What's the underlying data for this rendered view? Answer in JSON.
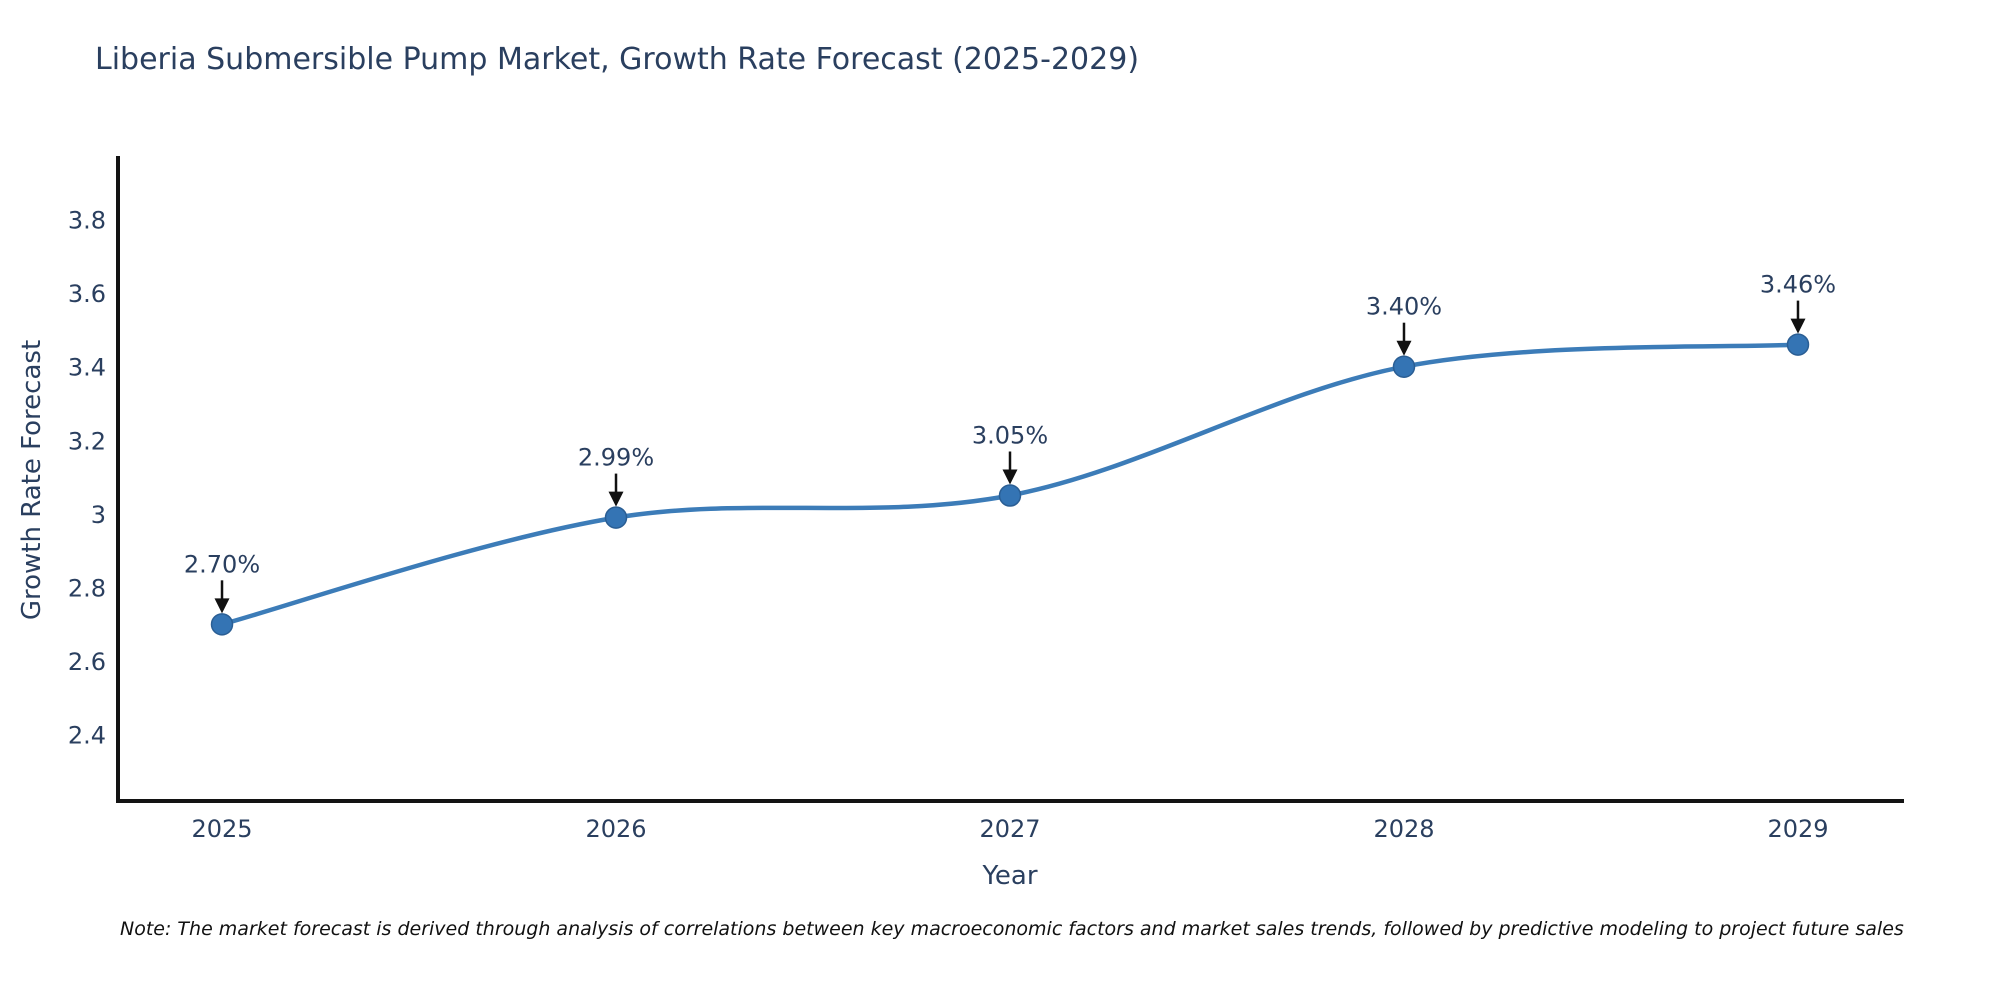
{
  "title": "Liberia Submersible Pump Market, Growth Rate Forecast (2025-2029)",
  "note": "Note: The market forecast is derived through analysis of correlations between key macroeconomic factors and market sales trends, followed by predictive modeling to project future sales",
  "colors": {
    "background": "#ffffff",
    "text": "#2a3f5f",
    "line": "#3c7cb8",
    "marker_fill": "#3474b4",
    "marker_edge": "#2a5e94",
    "axis_line": "#131313",
    "arrow": "#111111",
    "note_text": "#111111"
  },
  "chart_data": {
    "type": "line",
    "title": "Liberia Submersible Pump Market, Growth Rate Forecast (2025-2029)",
    "x": [
      2025,
      2026,
      2027,
      2028,
      2029
    ],
    "y": [
      2.7,
      2.99,
      3.05,
      3.4,
      3.46
    ],
    "point_labels": [
      "2.70%",
      "2.99%",
      "3.05%",
      "3.40%",
      "3.46%"
    ],
    "xlabel": "Year",
    "ylabel": "Growth Rate Forecast",
    "xtick_labels": [
      "2025",
      "2026",
      "2027",
      "2028",
      "2029"
    ],
    "xticks": [
      2025,
      2026,
      2027,
      2028,
      2029
    ],
    "ytick_labels": [
      "2.4",
      "2.6",
      "2.8",
      "3",
      "3.2",
      "3.4",
      "3.6",
      "3.8"
    ],
    "yticks": [
      2.4,
      2.6,
      2.8,
      3.0,
      3.2,
      3.4,
      3.6,
      3.8
    ],
    "xlim": [
      2024.736,
      2029.264
    ],
    "ylim": [
      2.22,
      3.967
    ],
    "line_shape": "spline",
    "grid": false,
    "legend": false
  }
}
